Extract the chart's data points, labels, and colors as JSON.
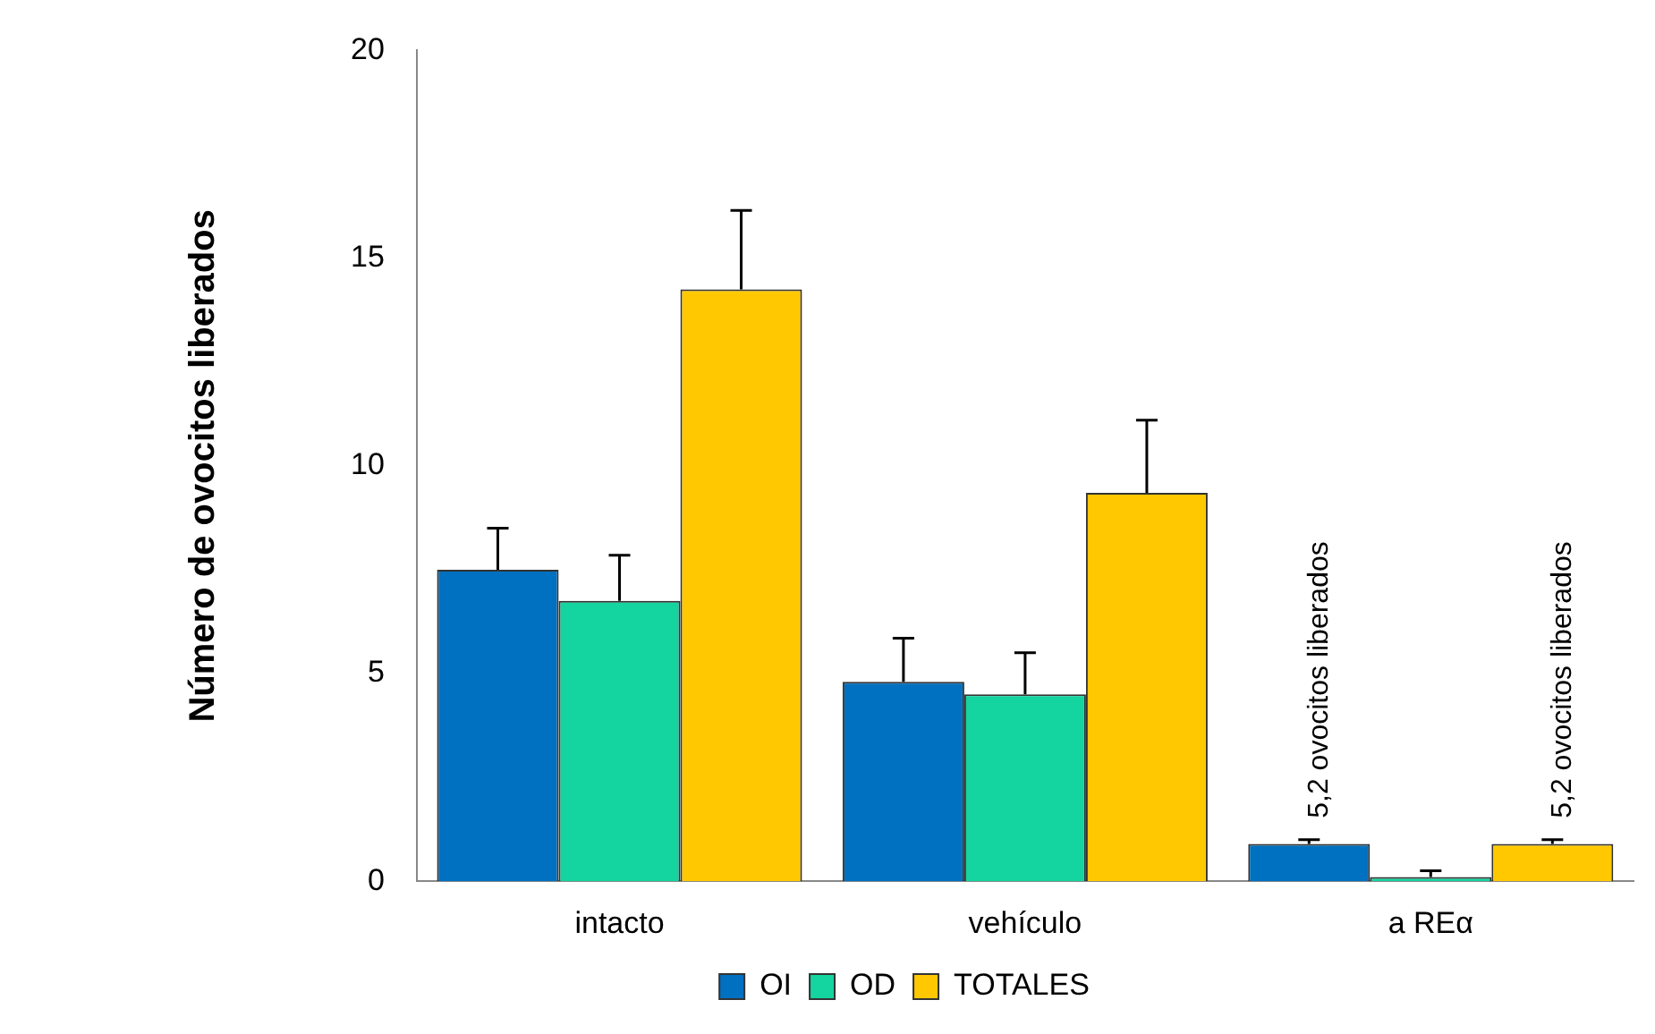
{
  "chart_data": {
    "type": "bar",
    "ylabel": "Número de ovocitos liberados",
    "categories": [
      "intacto",
      "vehículo",
      "a REα"
    ],
    "series": [
      {
        "name": "OI",
        "color": "#0070c0",
        "values": [
          7.5,
          4.8,
          0.9
        ],
        "errors": [
          [
            7.5,
            8.5
          ],
          [
            4.8,
            5.85
          ],
          [
            0.9,
            1.0
          ]
        ]
      },
      {
        "name": "OD",
        "color": "#14d4a0",
        "values": [
          6.75,
          4.5,
          0.1
        ],
        "errors": [
          [
            6.75,
            7.85
          ],
          [
            4.5,
            5.5
          ],
          [
            0.1,
            0.25
          ]
        ]
      },
      {
        "name": "TOTALES",
        "color": "#ffc800",
        "values": [
          14.25,
          9.35,
          0.9
        ],
        "errors": [
          [
            14.25,
            16.15
          ],
          [
            9.35,
            11.1
          ],
          [
            0.9,
            1.0
          ]
        ]
      }
    ],
    "annotations": [
      "5,2 ovocitos liberados",
      "5,2 ovocitos liberados"
    ],
    "ylim": [
      0,
      20
    ],
    "yticks": [
      0,
      5,
      10,
      15,
      20
    ],
    "grid": false,
    "legend": "bottom"
  }
}
